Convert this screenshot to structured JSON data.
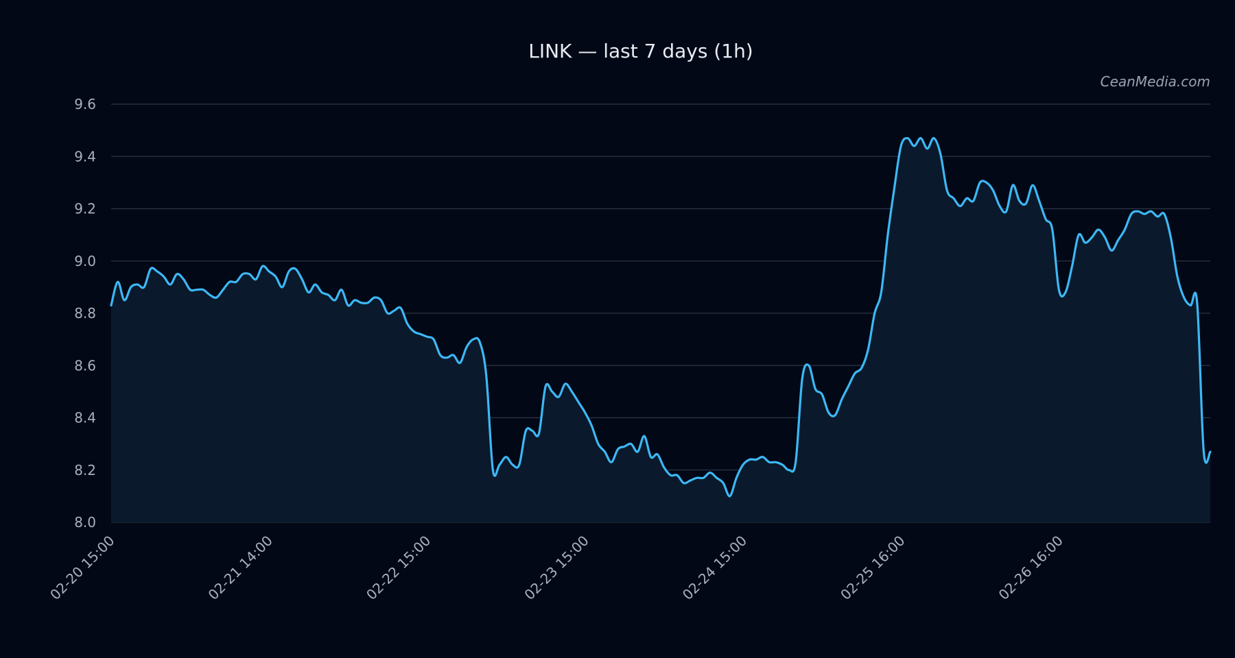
{
  "chart_data": {
    "type": "area",
    "title": "LINK — last 7 days (1h)",
    "watermark": "CeanMedia.com",
    "xlabel": "",
    "ylabel": "",
    "ylim": [
      8.0,
      9.6
    ],
    "yticks": [
      8.0,
      8.2,
      8.4,
      8.6,
      8.8,
      9.0,
      9.2,
      9.4,
      9.6
    ],
    "ytick_labels": [
      "8.0",
      "8.2",
      "8.4",
      "8.6",
      "8.8",
      "9.0",
      "9.2",
      "9.4",
      "9.6"
    ],
    "xticks": [
      "02-20 15:00",
      "02-21 14:00",
      "02-22 15:00",
      "02-23 15:00",
      "02-24 15:00",
      "02-25 16:00",
      "02-26 16:00"
    ],
    "grid": true,
    "x_interval": "1h",
    "line_color": "#3db8f5",
    "fill_color": "#0a1a2c",
    "background_color": "#030817",
    "grid_color": "#2c3444",
    "series": [
      {
        "values": [
          8.83,
          8.92,
          8.85,
          8.9,
          8.91,
          8.9,
          8.97,
          8.96,
          8.94,
          8.91,
          8.95,
          8.93,
          8.89,
          8.89,
          8.89,
          8.87,
          8.86,
          8.89,
          8.92,
          8.92,
          8.95,
          8.95,
          8.93,
          8.98,
          8.96,
          8.94,
          8.9,
          8.96,
          8.97,
          8.93,
          8.88,
          8.91,
          8.88,
          8.87,
          8.85,
          8.89,
          8.83,
          8.85,
          8.84,
          8.84,
          8.86,
          8.85,
          8.8,
          8.81,
          8.82,
          8.76,
          8.73,
          8.72,
          8.71,
          8.7,
          8.64,
          8.63,
          8.64,
          8.61,
          8.67,
          8.7,
          8.69,
          8.56,
          8.2,
          8.22,
          8.25,
          8.22,
          8.22,
          8.35,
          8.35,
          8.34,
          8.52,
          8.5,
          8.48,
          8.53,
          8.5,
          8.46,
          8.42,
          8.37,
          8.3,
          8.27,
          8.23,
          8.28,
          8.29,
          8.3,
          8.27,
          8.33,
          8.25,
          8.26,
          8.21,
          8.18,
          8.18,
          8.15,
          8.16,
          8.17,
          8.17,
          8.19,
          8.17,
          8.15,
          8.1,
          8.17,
          8.22,
          8.24,
          8.24,
          8.25,
          8.23,
          8.23,
          8.22,
          8.2,
          8.23,
          8.55,
          8.6,
          8.51,
          8.49,
          8.42,
          8.41,
          8.47,
          8.52,
          8.57,
          8.59,
          8.66,
          8.8,
          8.88,
          9.1,
          9.28,
          9.44,
          9.47,
          9.44,
          9.47,
          9.43,
          9.47,
          9.41,
          9.27,
          9.24,
          9.21,
          9.24,
          9.23,
          9.3,
          9.3,
          9.27,
          9.21,
          9.19,
          9.29,
          9.23,
          9.22,
          9.29,
          9.23,
          9.16,
          9.12,
          8.89,
          8.88,
          8.98,
          9.1,
          9.07,
          9.09,
          9.12,
          9.09,
          9.04,
          9.08,
          9.12,
          9.18,
          9.19,
          9.18,
          9.19,
          9.17,
          9.18,
          9.09,
          8.94,
          8.86,
          8.83,
          8.84,
          8.27,
          8.27
        ]
      }
    ]
  }
}
